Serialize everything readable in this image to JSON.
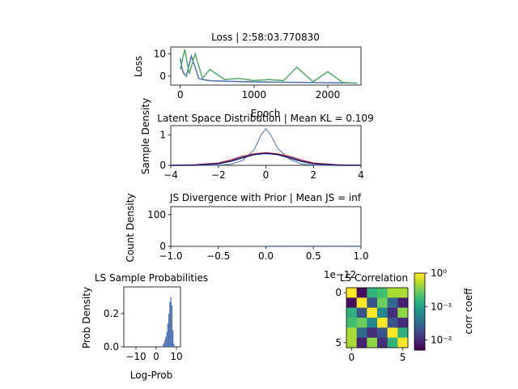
{
  "colors": {
    "blue": "#4c72b0",
    "green": "#55a868",
    "red": "#d62728",
    "navy": "#1a1a6e"
  },
  "chart_data": [
    {
      "type": "line",
      "title": "Loss | 2:58:03.770830",
      "xlabel": "Epoch",
      "ylabel": "Loss",
      "xlim": [
        -130,
        2450
      ],
      "ylim": [
        -4,
        13
      ],
      "xticks": [
        0,
        1000,
        2000
      ],
      "yticks": [
        0,
        10
      ],
      "series": [
        {
          "color": "#4c72b0",
          "x": [
            0,
            25,
            50,
            80,
            150,
            250,
            300,
            400,
            600,
            900,
            1300,
            1700,
            2100,
            2400
          ],
          "y": [
            8,
            3,
            1,
            0,
            9,
            -1,
            -1.5,
            -2,
            -2.3,
            -2.5,
            -2.7,
            -2.8,
            -3.0,
            -3.1
          ]
        },
        {
          "color": "#55a868",
          "x": [
            0,
            60,
            120,
            200,
            300,
            400,
            600,
            800,
            1000,
            1200,
            1400,
            1580,
            1800,
            2000,
            2200,
            2400
          ],
          "y": [
            3,
            12,
            1,
            10,
            -1,
            3,
            -1.5,
            -1,
            -2,
            -1.5,
            -2,
            4,
            -2.5,
            2,
            -2.8,
            -3.2
          ]
        }
      ]
    },
    {
      "type": "area",
      "title": "Latent Space Distribution | Mean KL = 0.109",
      "xlabel": "",
      "ylabel": "Sample Density",
      "xlim": [
        -4,
        4
      ],
      "ylim": [
        0,
        1.3
      ],
      "xticks": [
        -4,
        -2,
        0,
        2,
        4
      ],
      "yticks": [
        0,
        1
      ],
      "series": [
        {
          "color": "#4c72b0",
          "x": [
            -4,
            -3,
            -2,
            -1.5,
            -1,
            -0.5,
            -0.2,
            0,
            0.2,
            0.5,
            1,
            1.5,
            2,
            3,
            4
          ],
          "y": [
            0,
            0,
            0.01,
            0.03,
            0.15,
            0.5,
            1.0,
            1.2,
            1.0,
            0.55,
            0.2,
            0.04,
            0.01,
            0,
            0
          ]
        },
        {
          "color": "#4c72b0",
          "x": [
            -4,
            -3,
            -2,
            -1.5,
            -1,
            -0.5,
            0,
            0.5,
            1,
            1.5,
            2,
            3,
            4
          ],
          "y": [
            0,
            0.02,
            0.07,
            0.15,
            0.28,
            0.35,
            0.38,
            0.35,
            0.28,
            0.15,
            0.07,
            0.02,
            0
          ]
        },
        {
          "color": "#d62728",
          "x": [
            -4,
            -3,
            -2,
            -1.5,
            -1,
            -0.5,
            0,
            0.5,
            1,
            1.5,
            2,
            3,
            4
          ],
          "y": [
            0,
            0.02,
            0.08,
            0.18,
            0.3,
            0.38,
            0.42,
            0.38,
            0.3,
            0.18,
            0.08,
            0.02,
            0
          ]
        },
        {
          "color": "#1a1a6e",
          "x": [
            -4,
            -3,
            -2,
            -1.5,
            -1,
            -0.5,
            0,
            0.5,
            1,
            1.5,
            2,
            3,
            4
          ],
          "y": [
            0.0001,
            0.004,
            0.054,
            0.13,
            0.242,
            0.352,
            0.399,
            0.352,
            0.242,
            0.13,
            0.054,
            0.004,
            0.0001
          ]
        }
      ]
    },
    {
      "type": "bar",
      "title": "JS Divergence with Prior | Mean JS = inf",
      "xlabel": "",
      "ylabel": "Count Density",
      "offset_text": "1e−12",
      "xlim": [
        -1.0,
        1.0
      ],
      "ylim": [
        0,
        125
      ],
      "xticks": [
        -1.0,
        -0.5,
        0.0,
        0.5,
        1.0
      ],
      "yticks": [
        0,
        100
      ],
      "series": [
        {
          "color": "#4c72b0",
          "x": [
            0.0,
            1.0
          ],
          "y": [
            0.8,
            0.8
          ]
        }
      ]
    },
    {
      "type": "bar",
      "title": "LS Sample Probabilities",
      "xlabel": "Log-Prob",
      "ylabel": "Prob Density",
      "xlim": [
        -16,
        12
      ],
      "ylim": [
        0,
        0.36
      ],
      "xticks": [
        -10,
        0,
        10
      ],
      "yticks": [
        0.0,
        0.2
      ],
      "bin_width": 0.5,
      "series": [
        {
          "color": "#4c72b0",
          "x": [
            2.5,
            3.0,
            3.5,
            4.0,
            4.5,
            5.0,
            5.5,
            6.0,
            6.5,
            7.0,
            7.5,
            8.0,
            8.5
          ],
          "y": [
            0.003,
            0.01,
            0.02,
            0.04,
            0.06,
            0.09,
            0.14,
            0.2,
            0.27,
            0.3,
            0.25,
            0.1,
            0.02
          ]
        }
      ]
    },
    {
      "type": "heatmap",
      "title": "LS Correlation",
      "colorbar_label": "corr coeff",
      "xticks": [
        0,
        5
      ],
      "yticks": [
        0,
        5
      ],
      "colorbar_ticks": [
        "10⁰",
        "10⁻¹",
        "10⁻²"
      ],
      "colorbar_range": [
        0.005,
        1
      ],
      "matrix": [
        [
          1.0,
          0.006,
          0.15,
          0.2,
          0.5,
          0.5
        ],
        [
          0.006,
          1.0,
          0.02,
          0.3,
          0.03,
          0.008
        ],
        [
          0.15,
          0.02,
          1.0,
          0.06,
          0.01,
          0.4
        ],
        [
          0.2,
          0.3,
          0.06,
          1.0,
          0.02,
          0.01
        ],
        [
          0.5,
          0.03,
          0.01,
          0.02,
          1.0,
          0.15
        ],
        [
          0.5,
          0.008,
          0.4,
          0.01,
          0.15,
          1.0
        ]
      ]
    }
  ]
}
